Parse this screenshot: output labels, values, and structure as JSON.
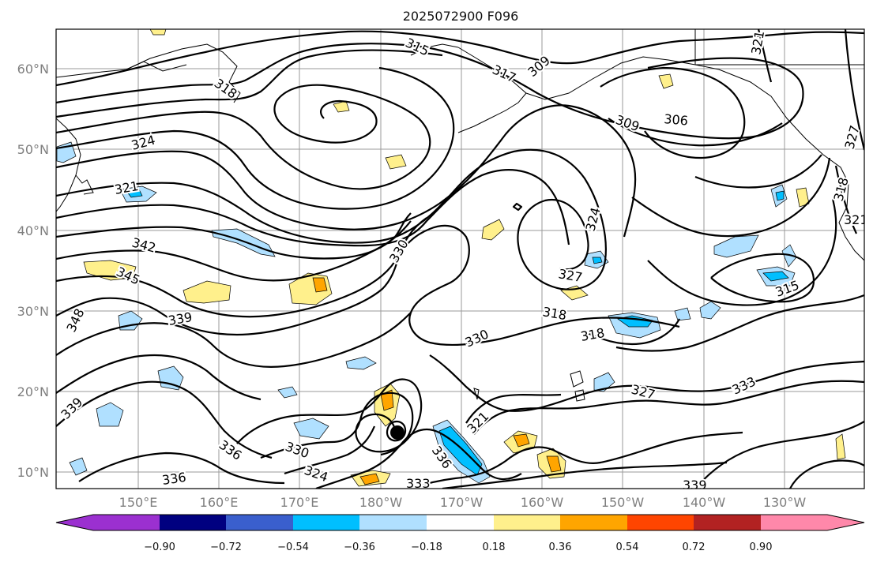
{
  "title": "2025072900 F096",
  "lat_labels": [
    "60°N",
    "50°N",
    "40°N",
    "30°N",
    "20°N",
    "10°N"
  ],
  "lon_labels": [
    "150°E",
    "160°E",
    "170°E",
    "180°W",
    "170°W",
    "160°W",
    "150°W",
    "140°W",
    "130°W"
  ],
  "colorbar": {
    "tick_labels": [
      "−0.90",
      "−0.72",
      "−0.54",
      "−0.36",
      "−0.18",
      "0.18",
      "0.36",
      "0.54",
      "0.72",
      "0.90"
    ],
    "colors": [
      "#9b30d0",
      "#000080",
      "#3a5fcd",
      "#00bfff",
      "#b0e0ff",
      "#ffffff",
      "#fff08c",
      "#ffa500",
      "#ff4500",
      "#b22222",
      "#ff88aa"
    ]
  },
  "contour_labels": [
    "315",
    "317",
    "309",
    "318",
    "324",
    "321",
    "342",
    "345",
    "348",
    "339",
    "339",
    "330",
    "330",
    "336",
    "330",
    "324",
    "336",
    "333",
    "321",
    "336",
    "324",
    "327",
    "318",
    "318",
    "327",
    "333",
    "309",
    "306",
    "315",
    "327",
    "318",
    "321",
    "339",
    "321"
  ],
  "map_marker": "filled-circle"
}
